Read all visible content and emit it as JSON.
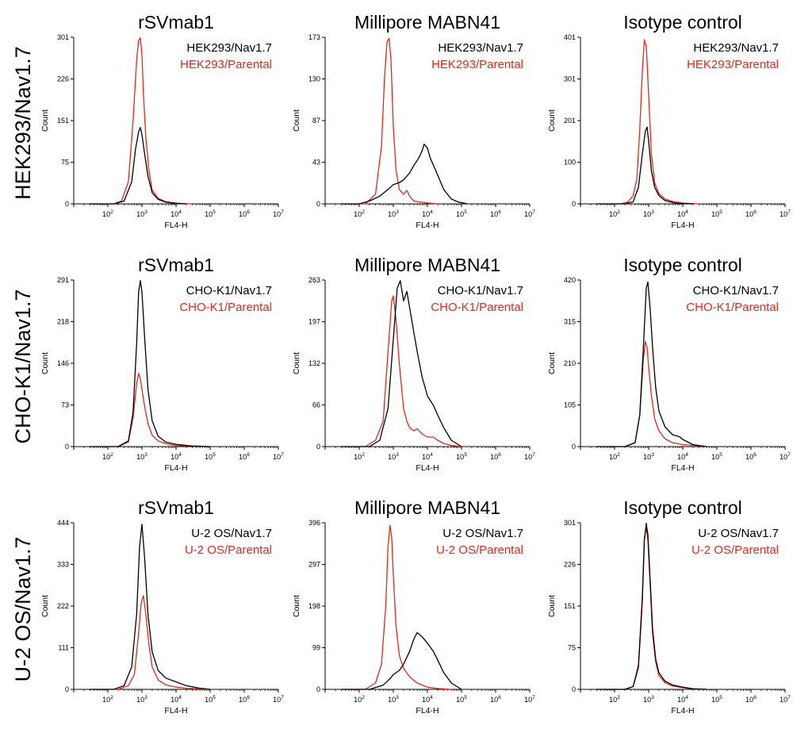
{
  "colors": {
    "sample": "#000000",
    "parental": "#e8261a"
  },
  "row_labels": [
    "HEK293/Nav1.7",
    "CHO-K1/Nav1.7",
    "U-2 OS/Nav1.7"
  ],
  "chart_data": [
    {
      "type": "line",
      "row": 0,
      "col": 0,
      "title": "rSVmab1",
      "xlabel": "FL4-H",
      "ylabel": "Count",
      "x_scale": "log",
      "xlim": [
        10,
        10000000
      ],
      "ylim": [
        0,
        301
      ],
      "yticks": [
        "0",
        "75",
        "151",
        "226",
        "301"
      ],
      "xticks": [
        "10^2",
        "10^3",
        "10^4",
        "10^5",
        "10^6",
        "10^7"
      ],
      "grid": false,
      "legend_position": "top-right",
      "series": [
        {
          "name": "HEK293/Nav1.7",
          "color": "#000000",
          "x": [
            30,
            150,
            300,
            500,
            650,
            800,
            900,
            1000,
            1200,
            1500,
            2000,
            3000,
            5000,
            10000,
            20000
          ],
          "y": [
            0,
            0,
            5,
            40,
            100,
            130,
            138,
            125,
            90,
            50,
            20,
            8,
            3,
            1,
            0
          ]
        },
        {
          "name": "HEK293/Parental",
          "color": "#e8261a",
          "x": [
            30,
            150,
            250,
            400,
            550,
            700,
            800,
            900,
            1000,
            1100,
            1300,
            1600,
            2000,
            3000,
            5000,
            10000,
            30000
          ],
          "y": [
            0,
            0,
            5,
            40,
            150,
            260,
            295,
            300,
            270,
            200,
            120,
            60,
            25,
            10,
            4,
            1,
            0
          ]
        }
      ]
    },
    {
      "type": "line",
      "row": 0,
      "col": 1,
      "title": "Millipore MABN41",
      "xlabel": "FL4-H",
      "ylabel": "Count",
      "x_scale": "log",
      "xlim": [
        10,
        10000000
      ],
      "ylim": [
        0,
        173
      ],
      "yticks": [
        "0",
        "43",
        "87",
        "130",
        "173"
      ],
      "xticks": [
        "10^2",
        "10^3",
        "10^4",
        "10^5",
        "10^6",
        "10^7"
      ],
      "grid": false,
      "legend_position": "top-right",
      "series": [
        {
          "name": "HEK293/Nav1.7",
          "color": "#000000",
          "x": [
            30,
            100,
            200,
            400,
            700,
            1000,
            1500,
            2000,
            3000,
            4000,
            5000,
            6000,
            7000,
            8000,
            10000,
            12000,
            15000,
            20000,
            30000,
            50000,
            80000,
            150000
          ],
          "y": [
            0,
            0,
            3,
            8,
            15,
            20,
            22,
            25,
            32,
            40,
            45,
            50,
            55,
            62,
            58,
            48,
            40,
            30,
            15,
            5,
            2,
            0
          ]
        },
        {
          "name": "HEK293/Parental",
          "color": "#e8261a",
          "x": [
            30,
            150,
            300,
            450,
            550,
            650,
            750,
            850,
            1000,
            1200,
            1500,
            2000,
            2500,
            3000,
            4000,
            6000,
            10000,
            20000
          ],
          "y": [
            0,
            0,
            10,
            60,
            130,
            168,
            172,
            150,
            80,
            35,
            15,
            10,
            14,
            8,
            3,
            2,
            1,
            0
          ]
        }
      ]
    },
    {
      "type": "line",
      "row": 0,
      "col": 2,
      "title": "Isotype control",
      "xlabel": "FL4-H",
      "ylabel": "Count",
      "x_scale": "log",
      "xlim": [
        10,
        10000000
      ],
      "ylim": [
        0,
        401
      ],
      "yticks": [
        "0",
        "100",
        "201",
        "301",
        "401"
      ],
      "xticks": [
        "10^2",
        "10^3",
        "10^4",
        "10^5",
        "10^6",
        "10^7"
      ],
      "grid": false,
      "legend_position": "top-right",
      "series": [
        {
          "name": "HEK293/Nav1.7",
          "color": "#000000",
          "x": [
            30,
            200,
            350,
            500,
            650,
            800,
            900,
            1000,
            1200,
            1500,
            2000,
            3000,
            6000,
            20000
          ],
          "y": [
            0,
            0,
            5,
            40,
            120,
            175,
            185,
            150,
            80,
            40,
            20,
            8,
            2,
            0
          ]
        },
        {
          "name": "HEK293/Parental",
          "color": "#e8261a",
          "x": [
            30,
            150,
            250,
            350,
            450,
            550,
            650,
            750,
            850,
            1000,
            1200,
            1500,
            2000,
            3000,
            5000,
            10000,
            30000
          ],
          "y": [
            0,
            0,
            5,
            20,
            60,
            180,
            320,
            395,
            380,
            260,
            120,
            50,
            25,
            12,
            6,
            2,
            0
          ]
        }
      ]
    },
    {
      "type": "line",
      "row": 1,
      "col": 0,
      "title": "rSVmab1",
      "xlabel": "FL4-H",
      "ylabel": "Count",
      "x_scale": "log",
      "xlim": [
        10,
        10000000
      ],
      "ylim": [
        0,
        291
      ],
      "yticks": [
        "0",
        "73",
        "146",
        "218",
        "291"
      ],
      "xticks": [
        "10^2",
        "10^3",
        "10^4",
        "10^5",
        "10^6",
        "10^7"
      ],
      "grid": false,
      "legend_position": "top-right",
      "series": [
        {
          "name": "CHO-K1/Nav1.7",
          "color": "#000000",
          "x": [
            30,
            200,
            400,
            550,
            700,
            800,
            900,
            1000,
            1200,
            1500,
            2000,
            3000,
            5000,
            10000,
            30000,
            100000
          ],
          "y": [
            0,
            0,
            10,
            60,
            180,
            270,
            290,
            270,
            190,
            100,
            45,
            18,
            8,
            4,
            1,
            0
          ]
        },
        {
          "name": "CHO-K1/Parental",
          "color": "#e8261a",
          "x": [
            30,
            200,
            400,
            550,
            700,
            800,
            900,
            1000,
            1200,
            1500,
            2000,
            3000,
            5000,
            10000,
            30000,
            100000
          ],
          "y": [
            0,
            0,
            8,
            50,
            110,
            128,
            118,
            100,
            70,
            40,
            20,
            10,
            5,
            2,
            1,
            0
          ]
        }
      ]
    },
    {
      "type": "line",
      "row": 1,
      "col": 1,
      "title": "Millipore MABN41",
      "xlabel": "FL4-H",
      "ylabel": "Count",
      "x_scale": "log",
      "xlim": [
        10,
        10000000
      ],
      "ylim": [
        0,
        263
      ],
      "yticks": [
        "0",
        "66",
        "132",
        "197",
        "263"
      ],
      "xticks": [
        "10^2",
        "10^3",
        "10^4",
        "10^5",
        "10^6",
        "10^7"
      ],
      "grid": false,
      "legend_position": "top-right",
      "series": [
        {
          "name": "CHO-K1/Nav1.7",
          "color": "#000000",
          "x": [
            30,
            200,
            400,
            700,
            1000,
            1300,
            1600,
            2000,
            2500,
            3000,
            4000,
            5000,
            7000,
            10000,
            15000,
            20000,
            30000,
            50000,
            100000
          ],
          "y": [
            0,
            0,
            10,
            60,
            170,
            250,
            262,
            230,
            245,
            220,
            180,
            150,
            110,
            80,
            65,
            50,
            30,
            10,
            0
          ]
        },
        {
          "name": "CHO-K1/Parental",
          "color": "#e8261a",
          "x": [
            30,
            150,
            300,
            500,
            700,
            900,
            1000,
            1200,
            1500,
            2000,
            2500,
            3000,
            4000,
            5000,
            7000,
            10000,
            15000,
            20000,
            30000,
            50000,
            100000
          ],
          "y": [
            0,
            0,
            10,
            40,
            150,
            230,
            238,
            200,
            130,
            60,
            40,
            30,
            25,
            28,
            20,
            15,
            15,
            10,
            5,
            2,
            0
          ]
        }
      ]
    },
    {
      "type": "line",
      "row": 1,
      "col": 2,
      "title": "Isotype control",
      "xlabel": "FL4-H",
      "ylabel": "Count",
      "x_scale": "log",
      "xlim": [
        10,
        10000000
      ],
      "ylim": [
        0,
        420
      ],
      "yticks": [
        "0",
        "105",
        "210",
        "315",
        "420"
      ],
      "xticks": [
        "10^2",
        "10^3",
        "10^4",
        "10^5",
        "10^6",
        "10^7"
      ],
      "grid": false,
      "legend_position": "top-right",
      "series": [
        {
          "name": "CHO-K1/Nav1.7",
          "color": "#000000",
          "x": [
            30,
            200,
            400,
            550,
            700,
            850,
            950,
            1100,
            1300,
            1600,
            2000,
            3000,
            5000,
            8000,
            10000,
            20000,
            50000
          ],
          "y": [
            0,
            0,
            10,
            80,
            250,
            400,
            415,
            350,
            250,
            150,
            90,
            50,
            30,
            25,
            18,
            5,
            0
          ]
        },
        {
          "name": "CHO-K1/Parental",
          "color": "#e8261a",
          "x": [
            30,
            200,
            400,
            550,
            700,
            800,
            900,
            1000,
            1200,
            1500,
            2000,
            3000,
            5000,
            10000,
            30000,
            50000
          ],
          "y": [
            0,
            0,
            10,
            80,
            220,
            265,
            250,
            200,
            130,
            70,
            40,
            20,
            10,
            5,
            2,
            0
          ]
        }
      ]
    },
    {
      "type": "line",
      "row": 2,
      "col": 0,
      "title": "rSVmab1",
      "xlabel": "FL4-H",
      "ylabel": "Count",
      "x_scale": "log",
      "xlim": [
        10,
        10000000
      ],
      "ylim": [
        0,
        444
      ],
      "yticks": [
        "0",
        "111",
        "222",
        "333",
        "444"
      ],
      "xticks": [
        "10^2",
        "10^3",
        "10^4",
        "10^5",
        "10^6",
        "10^7"
      ],
      "grid": false,
      "legend_position": "top-right",
      "series": [
        {
          "name": "U-2 OS/Nav1.7",
          "color": "#000000",
          "x": [
            30,
            150,
            300,
            500,
            700,
            850,
            1000,
            1200,
            1500,
            2000,
            3000,
            5000,
            10000,
            20000,
            50000,
            100000
          ],
          "y": [
            0,
            0,
            10,
            60,
            200,
            380,
            440,
            350,
            200,
            100,
            50,
            30,
            20,
            10,
            3,
            0
          ]
        },
        {
          "name": "U-2 OS/Parental",
          "color": "#e8261a",
          "x": [
            30,
            200,
            400,
            600,
            800,
            950,
            1100,
            1300,
            1600,
            2000,
            3000,
            5000,
            10000,
            20000,
            100000
          ],
          "y": [
            0,
            0,
            10,
            40,
            150,
            230,
            250,
            200,
            120,
            60,
            25,
            12,
            6,
            3,
            0
          ]
        }
      ]
    },
    {
      "type": "line",
      "row": 2,
      "col": 1,
      "title": "Millipore MABN41",
      "xlabel": "FL4-H",
      "ylabel": "Count",
      "x_scale": "log",
      "xlim": [
        10,
        10000000
      ],
      "ylim": [
        0,
        396
      ],
      "yticks": [
        "0",
        "99",
        "198",
        "297",
        "396"
      ],
      "xticks": [
        "10^2",
        "10^3",
        "10^4",
        "10^5",
        "10^6",
        "10^7"
      ],
      "grid": false,
      "legend_position": "top-right",
      "series": [
        {
          "name": "U-2 OS/Nav1.7",
          "color": "#000000",
          "x": [
            30,
            200,
            500,
            800,
            1000,
            1500,
            2000,
            3000,
            4000,
            5000,
            7000,
            10000,
            15000,
            20000,
            30000,
            50000,
            100000
          ],
          "y": [
            0,
            0,
            10,
            25,
            35,
            45,
            60,
            90,
            120,
            135,
            125,
            110,
            90,
            70,
            40,
            15,
            0
          ]
        },
        {
          "name": "U-2 OS/Parental",
          "color": "#e8261a",
          "x": [
            30,
            150,
            300,
            450,
            600,
            700,
            800,
            900,
            1000,
            1200,
            1500,
            2000,
            3000,
            5000,
            10000,
            20000,
            50000
          ],
          "y": [
            0,
            0,
            15,
            60,
            200,
            340,
            390,
            360,
            270,
            150,
            80,
            50,
            30,
            15,
            5,
            2,
            0
          ]
        }
      ]
    },
    {
      "type": "line",
      "row": 2,
      "col": 2,
      "title": "Isotype control",
      "xlabel": "FL4-H",
      "ylabel": "Count",
      "x_scale": "log",
      "xlim": [
        10,
        10000000
      ],
      "ylim": [
        0,
        301
      ],
      "yticks": [
        "0",
        "75",
        "151",
        "226",
        "301"
      ],
      "xticks": [
        "10^2",
        "10^3",
        "10^4",
        "10^5",
        "10^6",
        "10^7"
      ],
      "grid": false,
      "legend_position": "top-right",
      "series": [
        {
          "name": "U-2 OS/Nav1.7",
          "color": "#000000",
          "x": [
            30,
            200,
            350,
            500,
            650,
            750,
            850,
            950,
            1100,
            1300,
            1600,
            2000,
            3000,
            5000,
            10000,
            20000,
            50000
          ],
          "y": [
            0,
            0,
            5,
            40,
            160,
            270,
            300,
            280,
            200,
            110,
            55,
            30,
            15,
            8,
            4,
            1,
            0
          ]
        },
        {
          "name": "U-2 OS/Parental",
          "color": "#e8261a",
          "x": [
            30,
            200,
            350,
            500,
            650,
            750,
            850,
            950,
            1100,
            1300,
            1600,
            2000,
            3000,
            5000,
            10000,
            20000,
            50000
          ],
          "y": [
            0,
            0,
            5,
            45,
            170,
            275,
            290,
            270,
            190,
            100,
            50,
            25,
            12,
            6,
            3,
            1,
            0
          ]
        }
      ]
    }
  ]
}
